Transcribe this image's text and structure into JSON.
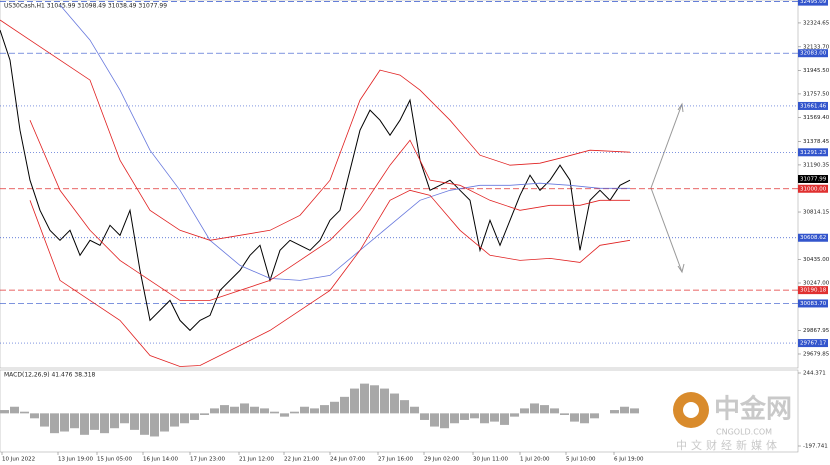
{
  "chart_data": [
    {
      "type": "line",
      "title": "US30Cash,H1  31045.99 31098.49 31038.49 31077.99",
      "xlim": [
        0,
        798
      ],
      "ylim": [
        29568,
        32508
      ],
      "xticks": [
        {
          "value": 2,
          "label": "10 Jun 2022"
        },
        {
          "value": 58,
          "label": "13 Jun 19:00"
        },
        {
          "value": 97,
          "label": "15 Jun 05:00"
        },
        {
          "value": 143,
          "label": "16 Jun 14:00"
        },
        {
          "value": 190,
          "label": "17 Jun 23:00"
        },
        {
          "value": 239,
          "label": "21 Jun 12:00"
        },
        {
          "value": 284,
          "label": "22 Jun 21:00"
        },
        {
          "value": 330,
          "label": "24 Jun 07:00"
        },
        {
          "value": 378,
          "label": "27 Jun 16:00"
        },
        {
          "value": 424,
          "label": "29 Jun 02:00"
        },
        {
          "value": 473,
          "label": "30 Jun 11:00"
        },
        {
          "value": 520,
          "label": "1 Jul 20:00"
        },
        {
          "value": 566,
          "label": "5 Jul 10:00"
        },
        {
          "value": 614,
          "label": "6 Jul 19:00"
        }
      ],
      "yticks": [
        32324.65,
        32133.7,
        31945.5,
        31757.5,
        31569.4,
        31378.45,
        31190.35,
        30814.15,
        30435,
        30247,
        29867.95,
        29679.85
      ],
      "ytick_labels": [
        "32324.65",
        "32133.70",
        "31945.50",
        "31757.50",
        "31569.40",
        "31378.45",
        "31190.35",
        "30814.15",
        "30435.00",
        "30247.00",
        "29867.95",
        "29679.85"
      ],
      "levels": [
        {
          "value": 32495.09,
          "label": "32495.09",
          "color": "#3355cc",
          "style": "dash"
        },
        {
          "value": 32083,
          "label": "32083.00",
          "color": "#3355cc",
          "style": "dash"
        },
        {
          "value": 31661.46,
          "label": "31661.46",
          "color": "#3355cc",
          "style": "dot"
        },
        {
          "value": 31291.23,
          "label": "31291.23",
          "color": "#3355cc",
          "style": "dot"
        },
        {
          "value": 31077.99,
          "label": "31077.99",
          "color": "#000000",
          "style": "none"
        },
        {
          "value": 31000,
          "label": "31000.00",
          "color": "#e03030",
          "style": "dash"
        },
        {
          "value": 30608.62,
          "label": "30608.62",
          "color": "#3355cc",
          "style": "dot"
        },
        {
          "value": 30190.18,
          "label": "30190.18",
          "color": "#e03030",
          "style": "dash"
        },
        {
          "value": 30083.7,
          "label": "30083.70",
          "color": "#3355cc",
          "style": "dash"
        },
        {
          "value": 29767.17,
          "label": "29767.17",
          "color": "#3355cc",
          "style": "dot"
        }
      ],
      "series": [
        {
          "name": "Price",
          "color": "#000000",
          "x": [
            0,
            10,
            20,
            30,
            40,
            50,
            60,
            70,
            80,
            90,
            100,
            110,
            120,
            130,
            140,
            150,
            160,
            170,
            180,
            190,
            200,
            210,
            220,
            230,
            240,
            250,
            260,
            270,
            280,
            290,
            300,
            310,
            320,
            330,
            340,
            350,
            360,
            370,
            380,
            390,
            400,
            410,
            420,
            430,
            440,
            450,
            460,
            470,
            480,
            490,
            500,
            510,
            520,
            530,
            540,
            550,
            560,
            570,
            580,
            590,
            600,
            610,
            620,
            630
          ],
          "values": [
            32268,
            32028,
            31468,
            31068,
            30828,
            30668,
            30588,
            30668,
            30468,
            30588,
            30548,
            30708,
            30628,
            30828,
            30348,
            29948,
            30028,
            30108,
            29948,
            29868,
            29948,
            29988,
            30188,
            30268,
            30348,
            30468,
            30548,
            30268,
            30508,
            30588,
            30548,
            30508,
            30588,
            30748,
            30828,
            31148,
            31468,
            31628,
            31548,
            31428,
            31548,
            31708,
            31228,
            30988,
            31028,
            31068,
            30988,
            30908,
            30508,
            30748,
            30548,
            30748,
            30948,
            31108,
            30988,
            31068,
            31188,
            31068,
            30508,
            30908,
            30988,
            30908,
            31028,
            31068
          ]
        },
        {
          "name": "MA",
          "color": "#6677dd",
          "x": [
            60,
            90,
            120,
            150,
            180,
            210,
            240,
            270,
            300,
            330,
            360,
            390,
            420,
            450,
            480,
            510,
            540,
            570,
            600,
            630
          ],
          "values": [
            32468,
            32188,
            31788,
            31308,
            30988,
            30588,
            30388,
            30284,
            30268,
            30308,
            30508,
            30708,
            30908,
            30988,
            31028,
            31028,
            31044,
            31028,
            31004,
            31004
          ]
        },
        {
          "name": "BB Upper",
          "color": "#e02020",
          "x": [
            0,
            30,
            60,
            90,
            120,
            150,
            180,
            210,
            240,
            270,
            300,
            330,
            360,
            380,
            400,
            420,
            450,
            480,
            510,
            540,
            560,
            590,
            630
          ],
          "values": [
            32348,
            32188,
            32028,
            31868,
            31228,
            30828,
            30668,
            30588,
            30628,
            30668,
            30788,
            31068,
            31708,
            31948,
            31908,
            31788,
            31548,
            31268,
            31188,
            31204,
            31244,
            31308,
            31292
          ]
        },
        {
          "name": "BB Middle",
          "color": "#e02020",
          "x": [
            30,
            60,
            90,
            120,
            150,
            180,
            210,
            240,
            270,
            300,
            330,
            360,
            390,
            410,
            430,
            460,
            490,
            520,
            550,
            580,
            600,
            630
          ],
          "values": [
            31548,
            30988,
            30668,
            30428,
            30268,
            30108,
            30108,
            30188,
            30268,
            30428,
            30588,
            30828,
            31188,
            31388,
            31068,
            31028,
            30908,
            30828,
            30868,
            30868,
            30908,
            30908
          ]
        },
        {
          "name": "BB Lower",
          "color": "#e02020",
          "x": [
            30,
            60,
            90,
            120,
            150,
            180,
            200,
            240,
            270,
            300,
            330,
            360,
            390,
            410,
            430,
            460,
            490,
            520,
            550,
            580,
            600,
            630
          ],
          "values": [
            30908,
            30268,
            30108,
            29948,
            29668,
            29580,
            29588,
            29748,
            29868,
            30028,
            30188,
            30508,
            30908,
            30988,
            30948,
            30668,
            30468,
            30428,
            30444,
            30412,
            30548,
            30588
          ]
        }
      ]
    },
    {
      "type": "bar",
      "title": "MACD(12,26,9) 41.476 38.318",
      "xlim": [
        0,
        798
      ],
      "ylim": [
        -197.741,
        244.371
      ],
      "yticks": [
        244.371,
        -197.741
      ],
      "color": "#a8a8a8",
      "x": [
        0,
        10,
        20,
        30,
        40,
        50,
        60,
        70,
        80,
        90,
        100,
        110,
        120,
        130,
        140,
        150,
        160,
        170,
        180,
        190,
        200,
        210,
        220,
        230,
        240,
        250,
        260,
        270,
        280,
        290,
        300,
        310,
        320,
        330,
        340,
        350,
        360,
        370,
        380,
        390,
        400,
        410,
        420,
        430,
        440,
        450,
        460,
        470,
        480,
        490,
        500,
        510,
        520,
        530,
        540,
        550,
        560,
        570,
        580,
        590,
        600,
        610,
        620,
        630
      ],
      "values": [
        20,
        40,
        10,
        -30,
        -80,
        -120,
        -110,
        -90,
        -130,
        -100,
        -120,
        -90,
        -60,
        -100,
        -130,
        -140,
        -110,
        -80,
        -60,
        -40,
        -10,
        30,
        50,
        40,
        60,
        40,
        30,
        10,
        -20,
        10,
        40,
        30,
        50,
        70,
        100,
        150,
        180,
        170,
        150,
        120,
        80,
        40,
        -40,
        -80,
        -90,
        -60,
        -40,
        -30,
        -60,
        -50,
        -70,
        -20,
        30,
        60,
        50,
        30,
        -10,
        -50,
        -60,
        -30,
        0,
        20,
        40,
        30
      ]
    }
  ],
  "watermark": {
    "brand": "中金网",
    "site": "CNGOLD.COM",
    "slogan": "中文财经新媒体"
  }
}
